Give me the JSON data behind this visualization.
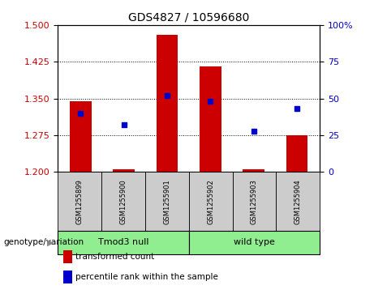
{
  "title": "GDS4827 / 10596680",
  "samples": [
    "GSM1255899",
    "GSM1255900",
    "GSM1255901",
    "GSM1255902",
    "GSM1255903",
    "GSM1255904"
  ],
  "transformed_count": [
    1.345,
    1.205,
    1.48,
    1.415,
    1.205,
    1.275
  ],
  "percentile_rank": [
    40,
    32,
    52,
    48,
    28,
    43
  ],
  "ylim_left": [
    1.2,
    1.5
  ],
  "ylim_right": [
    0,
    100
  ],
  "yticks_left": [
    1.2,
    1.275,
    1.35,
    1.425,
    1.5
  ],
  "yticks_right": [
    0,
    25,
    50,
    75,
    100
  ],
  "ytick_labels_right": [
    "0",
    "25",
    "50",
    "75",
    "100%"
  ],
  "bar_color": "#CC0000",
  "dot_color": "#0000CC",
  "bar_width": 0.5,
  "label_area_color": "#cccccc",
  "group_color": "#90EE90",
  "background_color": "#ffffff",
  "group_label": "genotype/variation",
  "groups": [
    {
      "label": "Tmod3 null",
      "start": 0,
      "end": 3
    },
    {
      "label": "wild type",
      "start": 3,
      "end": 6
    }
  ],
  "legend_labels": [
    "transformed count",
    "percentile rank within the sample"
  ],
  "title_fontsize": 10,
  "tick_fontsize": 8,
  "sample_fontsize": 6,
  "group_fontsize": 8,
  "legend_fontsize": 7.5
}
